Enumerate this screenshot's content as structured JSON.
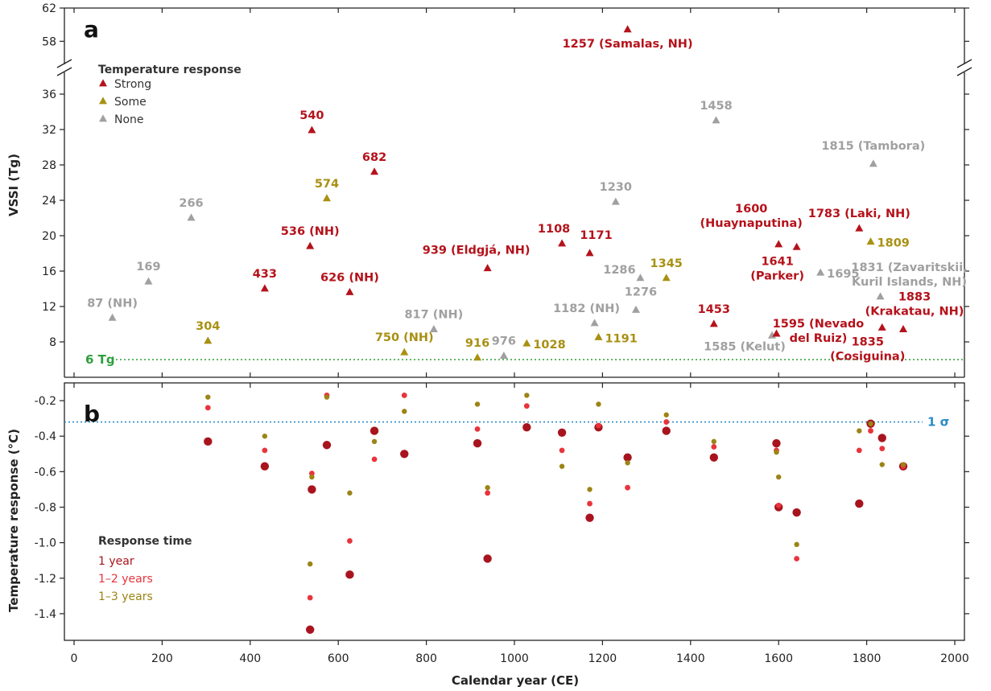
{
  "colors": {
    "strong": "#b5121b",
    "some": "#a89013",
    "none": "#a0a0a0",
    "r1": "#a8141e",
    "r2": "#e8343c",
    "r3": "#9c8416",
    "ref6": "#2e9e3c",
    "ref1s": "#2b8cc4"
  },
  "chart_data": {
    "type": "scatter",
    "xlabel": "Calendar year (CE)",
    "xlim": [
      0,
      2000
    ],
    "x_ticks": [
      0,
      200,
      400,
      600,
      800,
      1000,
      1200,
      1400,
      1600,
      1800,
      2000
    ],
    "panel_a": {
      "letter": "a",
      "ylabel": "VSSI (Tg)",
      "ylim_upper": [
        56,
        62
      ],
      "ylim_lower": [
        4,
        38
      ],
      "y_ticks_upper": [
        58,
        62
      ],
      "y_ticks_lower": [
        8,
        12,
        16,
        20,
        24,
        28,
        32,
        36
      ],
      "legend": {
        "title": "Temperature response",
        "entries": [
          {
            "label": "Strong",
            "cat": "strong"
          },
          {
            "label": "Some",
            "cat": "some"
          },
          {
            "label": "None",
            "cat": "none"
          }
        ]
      },
      "threshold": {
        "value": 6,
        "label": "6 Tg"
      },
      "eruptions": [
        {
          "year": 1257,
          "vssi": 59.4,
          "cat": "strong",
          "lines": [
            "1257 (Samalas, NH)"
          ],
          "dx": 0,
          "dy": 22,
          "anchor": "middle"
        },
        {
          "year": 540,
          "vssi": 31.9,
          "cat": "strong",
          "lines": [
            "540"
          ],
          "dx": 0,
          "dy": -14,
          "anchor": "middle"
        },
        {
          "year": 682,
          "vssi": 27.2,
          "cat": "strong",
          "lines": [
            "682"
          ],
          "dx": 0,
          "dy": -14,
          "anchor": "middle"
        },
        {
          "year": 574,
          "vssi": 24.2,
          "cat": "some",
          "lines": [
            "574"
          ],
          "dx": 0,
          "dy": -14,
          "anchor": "middle"
        },
        {
          "year": 266,
          "vssi": 22.0,
          "cat": "none",
          "lines": [
            "266"
          ],
          "dx": 0,
          "dy": -14,
          "anchor": "middle"
        },
        {
          "year": 536,
          "vssi": 18.8,
          "cat": "strong",
          "lines": [
            "536 (NH)"
          ],
          "dx": 0,
          "dy": -14,
          "anchor": "middle"
        },
        {
          "year": 433,
          "vssi": 14.0,
          "cat": "strong",
          "lines": [
            "433"
          ],
          "dx": 0,
          "dy": -14,
          "anchor": "middle"
        },
        {
          "year": 626,
          "vssi": 13.6,
          "cat": "strong",
          "lines": [
            "626 (NH)"
          ],
          "dx": 0,
          "dy": -14,
          "anchor": "middle"
        },
        {
          "year": 169,
          "vssi": 14.8,
          "cat": "none",
          "lines": [
            "169"
          ],
          "dx": 0,
          "dy": -14,
          "anchor": "middle"
        },
        {
          "year": 87,
          "vssi": 10.7,
          "cat": "none",
          "lines": [
            "87 (NH)"
          ],
          "dx": 0,
          "dy": -14,
          "anchor": "middle"
        },
        {
          "year": 304,
          "vssi": 8.1,
          "cat": "some",
          "lines": [
            "304"
          ],
          "dx": 0,
          "dy": -14,
          "anchor": "middle"
        },
        {
          "year": 750,
          "vssi": 6.8,
          "cat": "some",
          "lines": [
            "750 (NH)"
          ],
          "dx": 0,
          "dy": -14,
          "anchor": "middle"
        },
        {
          "year": 817,
          "vssi": 9.4,
          "cat": "none",
          "lines": [
            "817 (NH)"
          ],
          "dx": 0,
          "dy": -14,
          "anchor": "middle"
        },
        {
          "year": 916,
          "vssi": 6.2,
          "cat": "some",
          "lines": [
            "916"
          ],
          "dx": 0,
          "dy": -14,
          "anchor": "middle"
        },
        {
          "year": 976,
          "vssi": 6.4,
          "cat": "none",
          "lines": [
            "976"
          ],
          "dx": 0,
          "dy": -14,
          "anchor": "middle"
        },
        {
          "year": 939,
          "vssi": 16.3,
          "cat": "strong",
          "lines": [
            "939 (Eldgjá, NH)"
          ],
          "dx": -14,
          "dy": -18,
          "anchor": "middle"
        },
        {
          "year": 1028,
          "vssi": 7.8,
          "cat": "some",
          "lines": [
            "1028"
          ],
          "dx": 8,
          "dy": 6,
          "anchor": "start"
        },
        {
          "year": 1108,
          "vssi": 19.1,
          "cat": "strong",
          "lines": [
            "1108"
          ],
          "dx": -10,
          "dy": -14,
          "anchor": "middle"
        },
        {
          "year": 1171,
          "vssi": 18.0,
          "cat": "strong",
          "lines": [
            "1171"
          ],
          "dx": 8,
          "dy": -18,
          "anchor": "middle"
        },
        {
          "year": 1182,
          "vssi": 10.1,
          "cat": "none",
          "lines": [
            "1182 (NH)"
          ],
          "dx": -10,
          "dy": -14,
          "anchor": "middle"
        },
        {
          "year": 1191,
          "vssi": 8.5,
          "cat": "some",
          "lines": [
            "1191"
          ],
          "dx": 8,
          "dy": 6,
          "anchor": "start"
        },
        {
          "year": 1230,
          "vssi": 23.8,
          "cat": "none",
          "lines": [
            "1230"
          ],
          "dx": 0,
          "dy": -14,
          "anchor": "middle"
        },
        {
          "year": 1286,
          "vssi": 15.2,
          "cat": "none",
          "lines": [
            "1286"
          ],
          "dx": -26,
          "dy": -6,
          "anchor": "middle"
        },
        {
          "year": 1345,
          "vssi": 15.2,
          "cat": "some",
          "lines": [
            "1345"
          ],
          "dx": 0,
          "dy": -14,
          "anchor": "middle"
        },
        {
          "year": 1276,
          "vssi": 11.6,
          "cat": "none",
          "lines": [
            "1276"
          ],
          "dx": 6,
          "dy": -18,
          "anchor": "middle"
        },
        {
          "year": 1458,
          "vssi": 33.0,
          "cat": "none",
          "lines": [
            "1458"
          ],
          "dx": 0,
          "dy": -14,
          "anchor": "middle"
        },
        {
          "year": 1453,
          "vssi": 10.0,
          "cat": "strong",
          "lines": [
            "1453"
          ],
          "dx": 0,
          "dy": -14,
          "anchor": "middle"
        },
        {
          "year": 1585,
          "vssi": 8.7,
          "cat": "none",
          "lines": [
            "1585 (Kelut)"
          ],
          "dx": -34,
          "dy": 18,
          "anchor": "middle"
        },
        {
          "year": 1595,
          "vssi": 8.9,
          "cat": "strong",
          "lines": [
            "1595 (Nevado",
            "del Ruiz)"
          ],
          "dx": 52,
          "dy": -8,
          "anchor": "middle"
        },
        {
          "year": 1600,
          "vssi": 19.0,
          "cat": "strong",
          "lines": [
            "1600",
            "(Huaynaputina)"
          ],
          "dx": -34,
          "dy": -40,
          "anchor": "middle"
        },
        {
          "year": 1641,
          "vssi": 18.7,
          "cat": "strong",
          "lines": [
            "1641",
            "(Parker)"
          ],
          "dx": -24,
          "dy": 22,
          "anchor": "middle"
        },
        {
          "year": 1695,
          "vssi": 15.8,
          "cat": "none",
          "lines": [
            "1695"
          ],
          "dx": 8,
          "dy": 6,
          "anchor": "start"
        },
        {
          "year": 1783,
          "vssi": 20.8,
          "cat": "strong",
          "lines": [
            "1783 (Laki, NH)"
          ],
          "dx": 0,
          "dy": -14,
          "anchor": "middle"
        },
        {
          "year": 1809,
          "vssi": 19.3,
          "cat": "some",
          "lines": [
            "1809"
          ],
          "dx": 8,
          "dy": 6,
          "anchor": "start"
        },
        {
          "year": 1815,
          "vssi": 28.1,
          "cat": "none",
          "lines": [
            "1815 (Tambora)"
          ],
          "dx": 0,
          "dy": -18,
          "anchor": "middle"
        },
        {
          "year": 1831,
          "vssi": 13.1,
          "cat": "none",
          "lines": [
            "1831 (Zavaritskii,",
            "Kuril Islands, NH)"
          ],
          "dx": 36,
          "dy": -32,
          "anchor": "middle"
        },
        {
          "year": 1835,
          "vssi": 9.6,
          "cat": "strong",
          "lines": [
            "1835",
            "(Cosiguina)"
          ],
          "dx": -18,
          "dy": 22,
          "anchor": "middle"
        },
        {
          "year": 1883,
          "vssi": 9.4,
          "cat": "strong",
          "lines": [
            "1883",
            "(Krakatau, NH)"
          ],
          "dx": 14,
          "dy": -36,
          "anchor": "middle"
        }
      ]
    },
    "panel_b": {
      "letter": "b",
      "ylabel": "Temperature response (°C)",
      "ylim": [
        -1.55,
        -0.1
      ],
      "y_ticks": [
        -0.2,
        -0.4,
        -0.6,
        -0.8,
        -1.0,
        -1.2,
        -1.4
      ],
      "reference": {
        "value": -0.32,
        "label": "1 σ"
      },
      "legend": {
        "title": "Response time",
        "entries": [
          {
            "label": "1 year",
            "key": "r1"
          },
          {
            "label": "1–2 years",
            "key": "r2"
          },
          {
            "label": "1–3 years",
            "key": "r3"
          }
        ]
      },
      "series": [
        {
          "key": "r1",
          "name": "1 year",
          "points": [
            [
              304,
              -0.43
            ],
            [
              433,
              -0.57
            ],
            [
              536,
              -1.49
            ],
            [
              540,
              -0.7
            ],
            [
              574,
              -0.45
            ],
            [
              626,
              -1.18
            ],
            [
              682,
              -0.37
            ],
            [
              750,
              -0.5
            ],
            [
              916,
              -0.44
            ],
            [
              939,
              -1.09
            ],
            [
              1028,
              -0.35
            ],
            [
              1108,
              -0.38
            ],
            [
              1171,
              -0.86
            ],
            [
              1191,
              -0.35
            ],
            [
              1257,
              -0.52
            ],
            [
              1345,
              -0.37
            ],
            [
              1453,
              -0.52
            ],
            [
              1595,
              -0.44
            ],
            [
              1600,
              -0.8
            ],
            [
              1641,
              -0.83
            ],
            [
              1783,
              -0.78
            ],
            [
              1809,
              -0.33
            ],
            [
              1835,
              -0.41
            ],
            [
              1883,
              -0.57
            ]
          ]
        },
        {
          "key": "r2",
          "name": "1–2 years",
          "points": [
            [
              304,
              -0.24
            ],
            [
              433,
              -0.48
            ],
            [
              536,
              -1.31
            ],
            [
              540,
              -0.61
            ],
            [
              574,
              -0.17
            ],
            [
              626,
              -0.99
            ],
            [
              682,
              -0.53
            ],
            [
              750,
              -0.17
            ],
            [
              916,
              -0.36
            ],
            [
              939,
              -0.72
            ],
            [
              1028,
              -0.23
            ],
            [
              1108,
              -0.48
            ],
            [
              1171,
              -0.78
            ],
            [
              1191,
              -0.34
            ],
            [
              1257,
              -0.69
            ],
            [
              1345,
              -0.32
            ],
            [
              1453,
              -0.46
            ],
            [
              1595,
              -0.48
            ],
            [
              1600,
              -0.79
            ],
            [
              1641,
              -1.09
            ],
            [
              1783,
              -0.48
            ],
            [
              1809,
              -0.37
            ],
            [
              1835,
              -0.47
            ],
            [
              1883,
              -0.57
            ]
          ]
        },
        {
          "key": "r3",
          "name": "1–3 years",
          "points": [
            [
              304,
              -0.18
            ],
            [
              433,
              -0.4
            ],
            [
              536,
              -1.12
            ],
            [
              540,
              -0.63
            ],
            [
              574,
              -0.18
            ],
            [
              626,
              -0.72
            ],
            [
              682,
              -0.43
            ],
            [
              750,
              -0.26
            ],
            [
              916,
              -0.22
            ],
            [
              939,
              -0.69
            ],
            [
              1028,
              -0.17
            ],
            [
              1108,
              -0.57
            ],
            [
              1171,
              -0.7
            ],
            [
              1191,
              -0.22
            ],
            [
              1257,
              -0.55
            ],
            [
              1345,
              -0.28
            ],
            [
              1453,
              -0.43
            ],
            [
              1595,
              -0.49
            ],
            [
              1600,
              -0.63
            ],
            [
              1641,
              -1.01
            ],
            [
              1783,
              -0.37
            ],
            [
              1809,
              -0.33
            ],
            [
              1835,
              -0.56
            ],
            [
              1883,
              -0.56
            ]
          ]
        }
      ]
    }
  }
}
